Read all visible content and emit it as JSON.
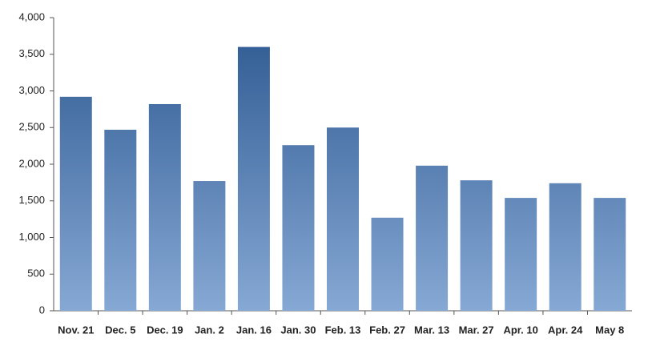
{
  "chart_data": {
    "type": "bar",
    "categories": [
      "Nov. 21",
      "Dec. 5",
      "Dec. 19",
      "Jan. 2",
      "Jan. 16",
      "Jan. 30",
      "Feb. 13",
      "Feb. 27",
      "Mar. 13",
      "Mar. 27",
      "Apr. 10",
      "Apr. 24",
      "May 8"
    ],
    "values": [
      2920,
      2470,
      2820,
      1770,
      3600,
      2260,
      2500,
      1270,
      1980,
      1780,
      1540,
      1740,
      1540
    ],
    "color": "#2c5890",
    "color_bottom": "#86a8d4",
    "ylim": [
      0,
      4000
    ],
    "yticks": [
      0,
      500,
      {
        "value": 1000,
        "label": "1,000"
      },
      {
        "value": 1500,
        "label": "1,500"
      },
      {
        "value": 2000,
        "label": "2,000"
      },
      {
        "value": 2500,
        "label": "2,500"
      },
      {
        "value": 3000,
        "label": "3,000"
      },
      {
        "value": 3500,
        "label": "3,500"
      },
      {
        "value": 4000,
        "label": "4,000"
      }
    ],
    "grid": false
  }
}
